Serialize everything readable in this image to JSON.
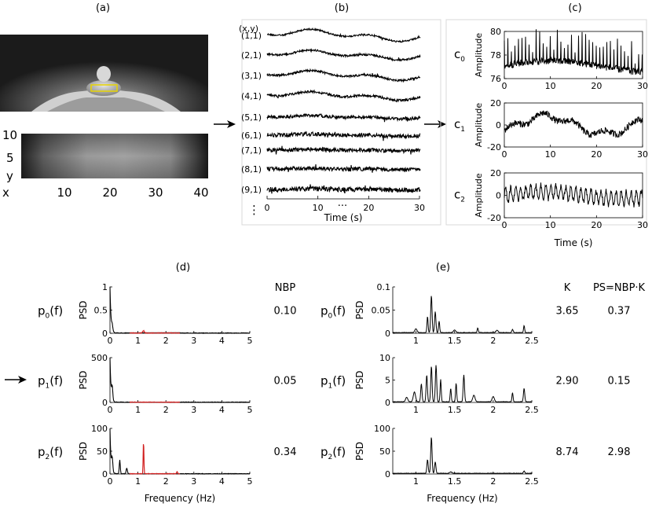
{
  "panel_letters": {
    "a": "(a)",
    "b": "(b)",
    "c": "(c)",
    "d": "(d)",
    "e": "(e)"
  },
  "panel_a": {
    "y_label": "y",
    "x_label": "x",
    "y_ticks": [
      "10",
      "5"
    ],
    "x_ticks": [
      "10",
      "20",
      "30",
      "40"
    ]
  },
  "panel_b": {
    "header": "(x,y)",
    "rows": [
      "(1,1)",
      "(2,1)",
      "(3,1)",
      "(4,1)",
      "(5,1)",
      "(6,1)",
      "(7,1)",
      "(8,1)",
      "(9,1)"
    ],
    "vdots": "⋮",
    "hdots": "···",
    "xticks": [
      "0",
      "10",
      "20",
      "30"
    ],
    "xlabel": "Time (s)"
  },
  "panel_c": {
    "ylabel": "Amplitude",
    "xlabel": "Time (s)",
    "xticks": [
      "0",
      "10",
      "20",
      "30"
    ],
    "components": [
      {
        "base": "c",
        "sub": "0",
        "yticks": [
          "80",
          "78",
          "76"
        ]
      },
      {
        "base": "c",
        "sub": "1",
        "yticks": [
          "20",
          "0",
          "-20"
        ]
      },
      {
        "base": "c",
        "sub": "2",
        "yticks": [
          "20",
          "0",
          "-20"
        ]
      }
    ]
  },
  "panel_d": {
    "col_header": "NBP",
    "ylabel": "PSD",
    "xlabel": "Frequency (Hz)",
    "xticks": [
      "0",
      "1",
      "2",
      "3",
      "4",
      "5"
    ],
    "rows": [
      {
        "base": "p",
        "sub": "0",
        "paren": "(f)",
        "yticks": [
          "1",
          "0.5",
          "0"
        ],
        "nbp": "0.10"
      },
      {
        "base": "p",
        "sub": "1",
        "paren": "(f)",
        "yticks": [
          "500",
          "0"
        ],
        "nbp": "0.05"
      },
      {
        "base": "p",
        "sub": "2",
        "paren": "(f)",
        "yticks": [
          "100",
          "50",
          "0"
        ],
        "nbp": "0.34"
      }
    ]
  },
  "panel_e": {
    "col_k": "K",
    "col_ps": "PS=NBP·K",
    "ylabel": "PSD",
    "xlabel": "Frequency (Hz)",
    "xticks": [
      "1",
      "1.5",
      "2",
      "2.5"
    ],
    "rows": [
      {
        "base": "p",
        "sub": "0",
        "paren": "(f)",
        "yticks": [
          "0.1",
          "0.05",
          "0"
        ],
        "k": "3.65",
        "ps": "0.37"
      },
      {
        "base": "p",
        "sub": "1",
        "paren": "(f)",
        "yticks": [
          "10",
          "5",
          "0"
        ],
        "k": "2.90",
        "ps": "0.15"
      },
      {
        "base": "p",
        "sub": "2",
        "paren": "(f)",
        "yticks": [
          "100",
          "50",
          "0"
        ],
        "k": "8.74",
        "ps": "2.98"
      }
    ]
  },
  "colors": {
    "trace": "#000000",
    "band": "#d12020",
    "roi": "#e8d400"
  }
}
